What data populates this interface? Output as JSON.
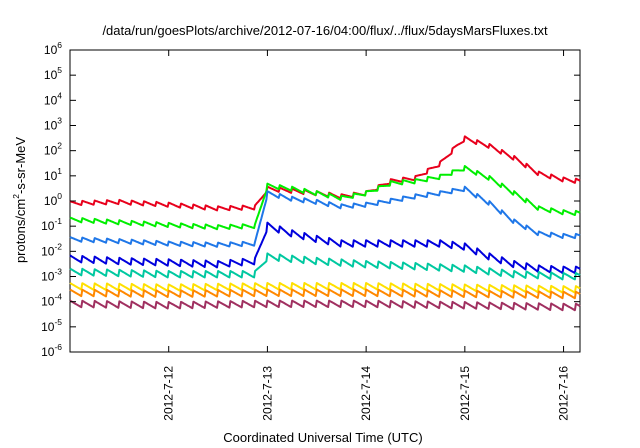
{
  "chart_data": {
    "type": "line",
    "title": "/data/run/goesPlots/archive/2012-07-16/04:00/flux/../flux/5daysMarsFluxes.txt",
    "xlabel": "Coordinated Universal Time (UTC)",
    "ylabel": "protons/cm²-s-sr-MeV",
    "ylabel_parts": {
      "base": "protons/cm",
      "sup": "2",
      "rest": "-s-sr-MeV"
    },
    "y_scale": "log",
    "ylim": [
      1e-06,
      1000000.0
    ],
    "y_ticks": [
      {
        "value": 1e-06,
        "base": "10",
        "exp": "-6"
      },
      {
        "value": 1e-05,
        "base": "10",
        "exp": "-5"
      },
      {
        "value": 0.0001,
        "base": "10",
        "exp": "-4"
      },
      {
        "value": 0.001,
        "base": "10",
        "exp": "-3"
      },
      {
        "value": 0.01,
        "base": "10",
        "exp": "-2"
      },
      {
        "value": 0.1,
        "base": "10",
        "exp": "-1"
      },
      {
        "value": 1,
        "base": "10",
        "exp": "0"
      },
      {
        "value": 10.0,
        "base": "10",
        "exp": "1"
      },
      {
        "value": 100.0,
        "base": "10",
        "exp": "2"
      },
      {
        "value": 1000.0,
        "base": "10",
        "exp": "3"
      },
      {
        "value": 10000.0,
        "base": "10",
        "exp": "4"
      },
      {
        "value": 100000.0,
        "base": "10",
        "exp": "5"
      },
      {
        "value": 1000000.0,
        "base": "10",
        "exp": "6"
      }
    ],
    "xlim": [
      "2012-07-11 00:00",
      "2012-07-16 04:00"
    ],
    "x_ticks": [
      {
        "date": "2012-07-12 00:00",
        "label": "2012-7-12"
      },
      {
        "date": "2012-07-13 00:00",
        "label": "2012-7-13"
      },
      {
        "date": "2012-07-14 00:00",
        "label": "2012-7-14"
      },
      {
        "date": "2012-07-15 00:00",
        "label": "2012-7-15"
      },
      {
        "date": "2012-07-16 00:00",
        "label": "2012-7-16"
      }
    ],
    "grid": false,
    "legend": "none",
    "series": [
      {
        "color": "#e8001c",
        "points": [
          [
            "2012-07-11 00:00",
            0.8
          ],
          [
            "2012-07-11 12:00",
            0.9
          ],
          [
            "2012-07-12 00:00",
            0.7
          ],
          [
            "2012-07-12 12:00",
            0.5
          ],
          [
            "2012-07-12 21:00",
            0.55
          ],
          [
            "2012-07-13 00:00",
            3.0
          ],
          [
            "2012-07-13 06:00",
            2.5
          ],
          [
            "2012-07-13 12:00",
            2.0
          ],
          [
            "2012-07-13 18:00",
            1.5
          ],
          [
            "2012-07-14 00:00",
            2.0
          ],
          [
            "2012-07-14 06:00",
            6.0
          ],
          [
            "2012-07-14 12:00",
            8.0
          ],
          [
            "2012-07-14 18:00",
            30.0
          ],
          [
            "2012-07-14 22:00",
            150.0
          ],
          [
            "2012-07-15 00:00",
            300.0
          ],
          [
            "2012-07-15 06:00",
            150.0
          ],
          [
            "2012-07-15 12:00",
            50.0
          ],
          [
            "2012-07-15 18:00",
            12.0
          ],
          [
            "2012-07-16 00:00",
            7.0
          ],
          [
            "2012-07-16 04:00",
            6.0
          ]
        ]
      },
      {
        "color": "#00ee00",
        "points": [
          [
            "2012-07-11 00:00",
            0.18
          ],
          [
            "2012-07-11 12:00",
            0.14
          ],
          [
            "2012-07-12 00:00",
            0.11
          ],
          [
            "2012-07-12 12:00",
            0.09
          ],
          [
            "2012-07-12 21:00",
            0.1
          ],
          [
            "2012-07-13 00:00",
            4.0
          ],
          [
            "2012-07-13 06:00",
            3.0
          ],
          [
            "2012-07-13 12:00",
            2.0
          ],
          [
            "2012-07-13 18:00",
            1.3
          ],
          [
            "2012-07-14 00:00",
            2.0
          ],
          [
            "2012-07-14 06:00",
            5.0
          ],
          [
            "2012-07-14 12:00",
            6.0
          ],
          [
            "2012-07-14 18:00",
            9.0
          ],
          [
            "2012-07-15 00:00",
            20.0
          ],
          [
            "2012-07-15 06:00",
            8.0
          ],
          [
            "2012-07-15 12:00",
            2.0
          ],
          [
            "2012-07-15 18:00",
            0.5
          ],
          [
            "2012-07-16 00:00",
            0.35
          ],
          [
            "2012-07-16 04:00",
            0.32
          ]
        ]
      },
      {
        "color": "#1f77e8",
        "points": [
          [
            "2012-07-11 00:00",
            0.03
          ],
          [
            "2012-07-11 12:00",
            0.025
          ],
          [
            "2012-07-12 00:00",
            0.02
          ],
          [
            "2012-07-12 12:00",
            0.018
          ],
          [
            "2012-07-12 21:00",
            0.02
          ],
          [
            "2012-07-13 00:00",
            2.0
          ],
          [
            "2012-07-13 06:00",
            1.2
          ],
          [
            "2012-07-13 12:00",
            0.9
          ],
          [
            "2012-07-13 18:00",
            0.6
          ],
          [
            "2012-07-14 00:00",
            0.7
          ],
          [
            "2012-07-14 06:00",
            1.0
          ],
          [
            "2012-07-14 12:00",
            1.5
          ],
          [
            "2012-07-14 18:00",
            2.0
          ],
          [
            "2012-07-15 00:00",
            3.0
          ],
          [
            "2012-07-15 06:00",
            0.8
          ],
          [
            "2012-07-15 12:00",
            0.15
          ],
          [
            "2012-07-15 18:00",
            0.05
          ],
          [
            "2012-07-16 00:00",
            0.04
          ],
          [
            "2012-07-16 04:00",
            0.04
          ]
        ]
      },
      {
        "color": "#0000dd",
        "points": [
          [
            "2012-07-11 00:00",
            0.005
          ],
          [
            "2012-07-11 12:00",
            0.004
          ],
          [
            "2012-07-12 00:00",
            0.0035
          ],
          [
            "2012-07-12 12:00",
            0.003
          ],
          [
            "2012-07-12 21:00",
            0.004
          ],
          [
            "2012-07-13 00:00",
            0.1
          ],
          [
            "2012-07-13 06:00",
            0.05
          ],
          [
            "2012-07-13 12:00",
            0.03
          ],
          [
            "2012-07-13 18:00",
            0.02
          ],
          [
            "2012-07-14 00:00",
            0.02
          ],
          [
            "2012-07-14 06:00",
            0.02
          ],
          [
            "2012-07-14 12:00",
            0.02
          ],
          [
            "2012-07-14 18:00",
            0.02
          ],
          [
            "2012-07-15 00:00",
            0.015
          ],
          [
            "2012-07-15 06:00",
            0.006
          ],
          [
            "2012-07-15 12:00",
            0.003
          ],
          [
            "2012-07-15 18:00",
            0.002
          ],
          [
            "2012-07-16 00:00",
            0.0018
          ],
          [
            "2012-07-16 04:00",
            0.0018
          ]
        ]
      },
      {
        "color": "#00c8a0",
        "points": [
          [
            "2012-07-11 00:00",
            0.0015
          ],
          [
            "2012-07-12 00:00",
            0.0012
          ],
          [
            "2012-07-12 21:00",
            0.0012
          ],
          [
            "2012-07-13 00:00",
            0.006
          ],
          [
            "2012-07-13 12:00",
            0.004
          ],
          [
            "2012-07-14 00:00",
            0.003
          ],
          [
            "2012-07-14 12:00",
            0.0025
          ],
          [
            "2012-07-15 00:00",
            0.002
          ],
          [
            "2012-07-15 12:00",
            0.0012
          ],
          [
            "2012-07-16 00:00",
            0.001
          ],
          [
            "2012-07-16 04:00",
            0.001
          ]
        ]
      },
      {
        "color": "#ffe000",
        "points": [
          [
            "2012-07-11 00:00",
            0.0004
          ],
          [
            "2012-07-12 00:00",
            0.00035
          ],
          [
            "2012-07-13 00:00",
            0.0004
          ],
          [
            "2012-07-14 00:00",
            0.0004
          ],
          [
            "2012-07-15 00:00",
            0.00035
          ],
          [
            "2012-07-16 00:00",
            0.0003
          ],
          [
            "2012-07-16 04:00",
            0.0003
          ]
        ]
      },
      {
        "color": "#ff8800",
        "points": [
          [
            "2012-07-11 00:00",
            0.00022
          ],
          [
            "2012-07-12 00:00",
            0.0002
          ],
          [
            "2012-07-13 00:00",
            0.00022
          ],
          [
            "2012-07-14 00:00",
            0.00022
          ],
          [
            "2012-07-15 00:00",
            0.0002
          ],
          [
            "2012-07-16 00:00",
            0.00018
          ],
          [
            "2012-07-16 04:00",
            0.00018
          ]
        ]
      },
      {
        "color": "#a03060",
        "points": [
          [
            "2012-07-11 00:00",
            8e-05
          ],
          [
            "2012-07-12 00:00",
            7e-05
          ],
          [
            "2012-07-13 00:00",
            8e-05
          ],
          [
            "2012-07-14 00:00",
            8e-05
          ],
          [
            "2012-07-15 00:00",
            7e-05
          ],
          [
            "2012-07-16 00:00",
            6e-05
          ],
          [
            "2012-07-16 04:00",
            6e-05
          ]
        ]
      }
    ]
  }
}
